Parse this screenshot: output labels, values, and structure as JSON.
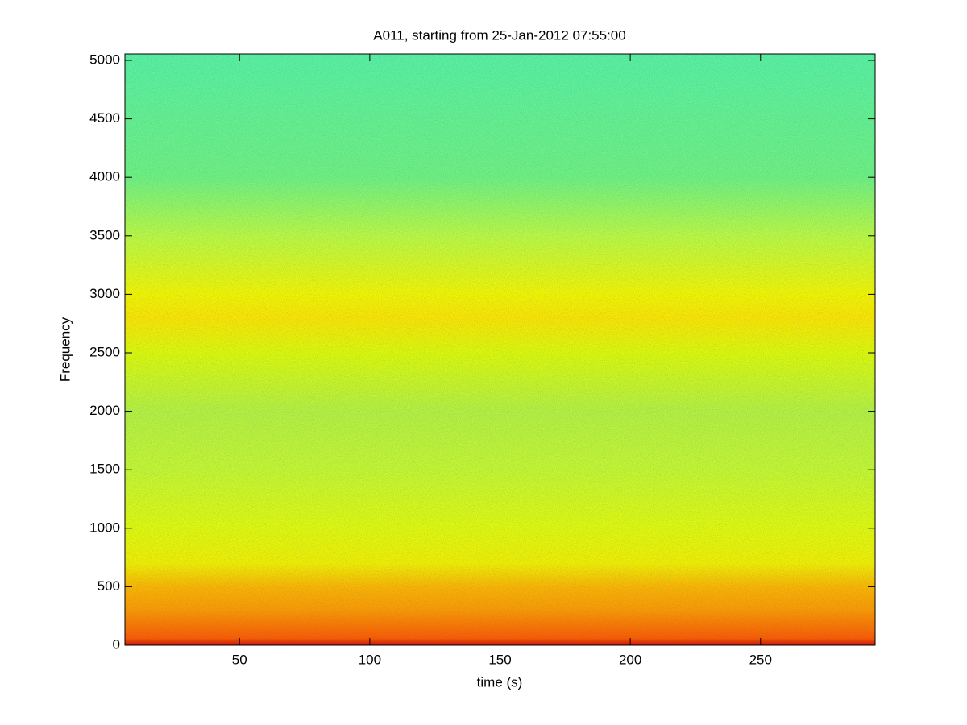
{
  "chart_data": {
    "type": "spectrogram",
    "title": "A011, starting from 25-Jan-2012 07:55:00",
    "x_label": "time (s)",
    "y_label": "Frequency",
    "xlim": [
      6,
      294
    ],
    "ylim": [
      0,
      5055
    ],
    "xticks": [
      50,
      100,
      150,
      200,
      250
    ],
    "yticks": [
      0,
      500,
      1000,
      1500,
      2000,
      2500,
      3000,
      3500,
      4000,
      4500,
      5000
    ],
    "color_stops": [
      {
        "value": 0,
        "color": "#d81000"
      },
      {
        "value": 60,
        "color": "#ff5a00"
      },
      {
        "value": 300,
        "color": "#ff9800"
      },
      {
        "value": 500,
        "color": "#ffb400"
      },
      {
        "value": 700,
        "color": "#f4ee00"
      },
      {
        "value": 1000,
        "color": "#e4f80c"
      },
      {
        "value": 1500,
        "color": "#c8f630"
      },
      {
        "value": 2000,
        "color": "#b8f040"
      },
      {
        "value": 2500,
        "color": "#e0f808"
      },
      {
        "value": 2800,
        "color": "#ffe400"
      },
      {
        "value": 3000,
        "color": "#f6f400"
      },
      {
        "value": 3500,
        "color": "#bef842"
      },
      {
        "value": 4000,
        "color": "#72f080"
      },
      {
        "value": 5055,
        "color": "#5cf0a0"
      }
    ]
  }
}
